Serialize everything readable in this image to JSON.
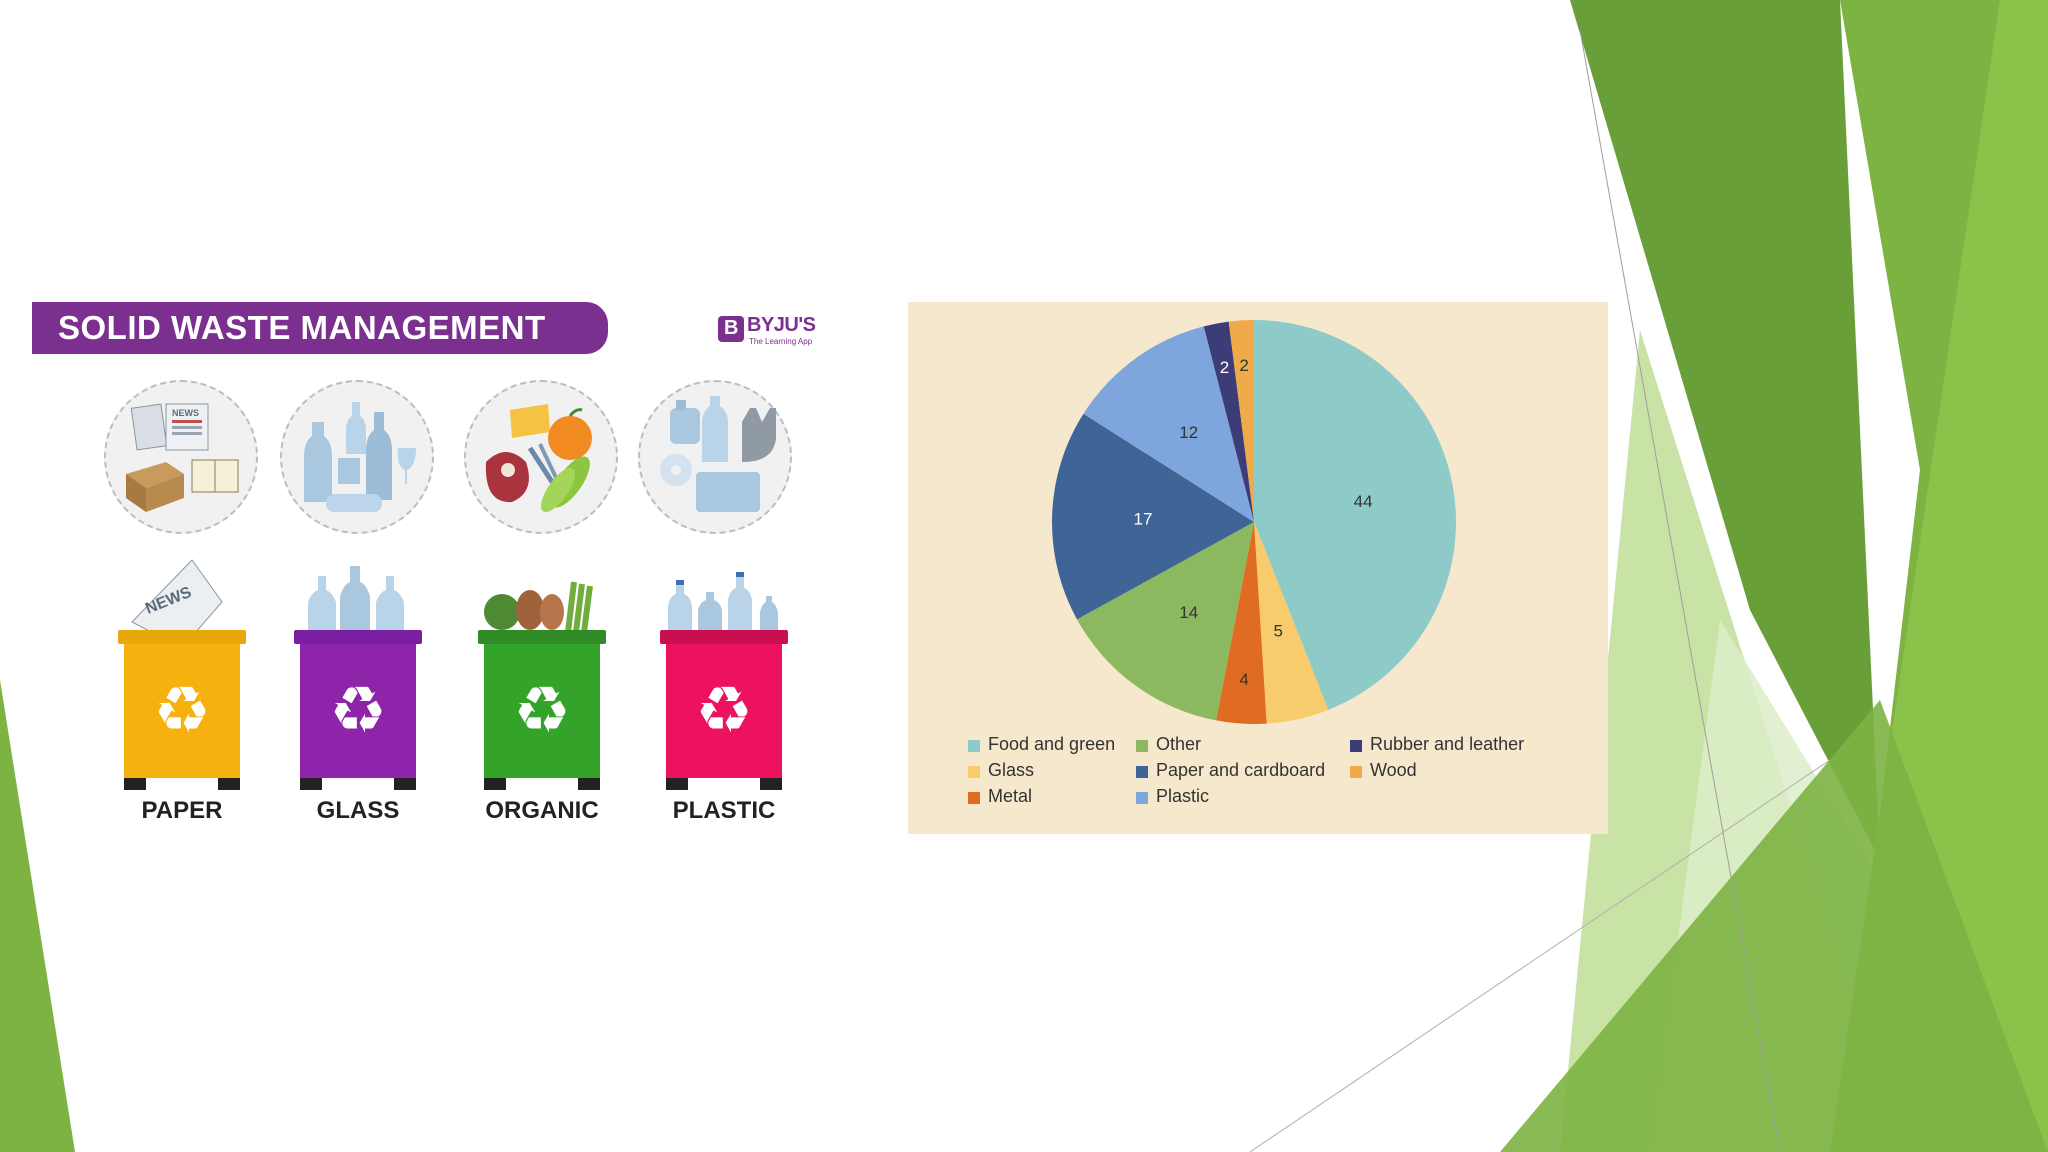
{
  "infographic": {
    "title": "SOLID WASTE MANAGEMENT",
    "logo": {
      "name": "BYJU'S",
      "tagline": "The Learning App",
      "mark": "B"
    },
    "circles": [
      {
        "icon": "paper-items-icon",
        "news_text": "NEWS"
      },
      {
        "icon": "glass-items-icon"
      },
      {
        "icon": "organic-items-icon"
      },
      {
        "icon": "plastic-items-icon"
      }
    ],
    "bins": [
      {
        "label": "PAPER",
        "color": "#f7b10f",
        "extra_text": "NEWS"
      },
      {
        "label": "GLASS",
        "color": "#8e24aa"
      },
      {
        "label": "ORGANIC",
        "color": "#34a32a"
      },
      {
        "label": "PLASTIC",
        "color": "#ec1260"
      }
    ]
  },
  "chart_data": {
    "type": "pie",
    "slices": [
      {
        "name": "Food and green",
        "value": 44,
        "color": "#8ecbc8"
      },
      {
        "name": "Glass",
        "value": 5,
        "color": "#f8cc6c"
      },
      {
        "name": "Metal",
        "value": 4,
        "color": "#e06b23"
      },
      {
        "name": "Other",
        "value": 14,
        "color": "#8cb860"
      },
      {
        "name": "Paper and cardboard",
        "value": 17,
        "color": "#3e6595"
      },
      {
        "name": "Plastic",
        "value": 12,
        "color": "#7ea6dc"
      },
      {
        "name": "Rubber and leather",
        "value": 2,
        "color": "#3c3c78"
      },
      {
        "name": "Wood",
        "value": 2,
        "color": "#efaa4a"
      }
    ],
    "legend_order": [
      "Food and green",
      "Other",
      "Rubber and leather",
      "Glass",
      "Paper and cardboard",
      "Wood",
      "Metal",
      "Plastic"
    ],
    "legend_position": "bottom",
    "background": "#f6e8cd"
  }
}
